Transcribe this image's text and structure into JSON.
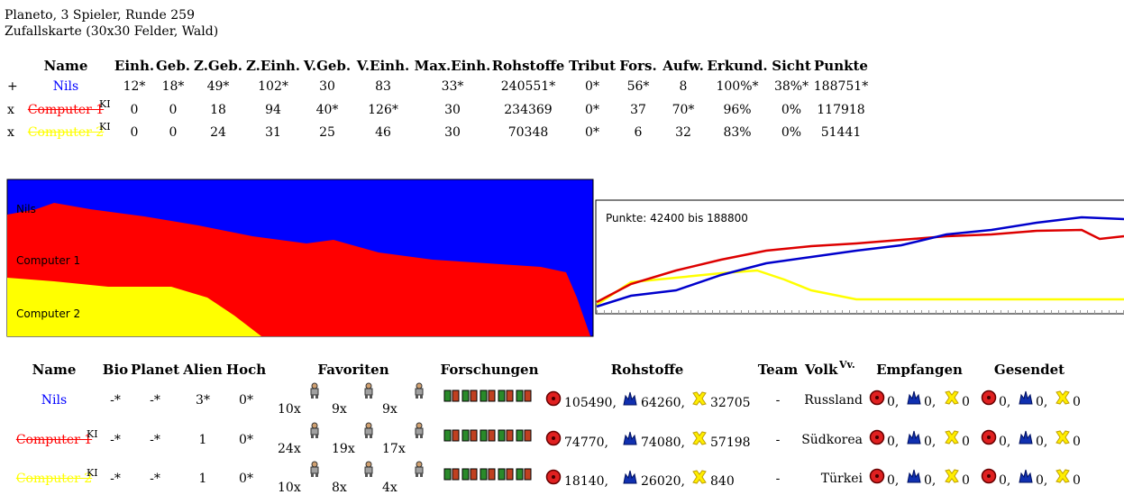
{
  "header": {
    "title": "Planeto, 3 Spieler, Runde 259",
    "subtitle": "Zufallskarte (30x30 Felder, Wald)"
  },
  "table1": {
    "columns": [
      "Name",
      "Einh.",
      "Geb.",
      "Z.Geb.",
      "Z.Einh.",
      "V.Geb.",
      "V.Einh.",
      "Max.Einh.",
      "Rohstoffe",
      "Tribut",
      "Fors.",
      "Aufw.",
      "Erkund.",
      "Sicht",
      "Punkte"
    ],
    "rows": [
      {
        "prefix": "+",
        "name": "Nils",
        "color": "#0000ff",
        "cells": [
          "12*",
          "18*",
          "49*",
          "102*",
          "30",
          "83",
          "33*",
          "240551*",
          "0*",
          "56*",
          "8",
          "100%*",
          "38%*",
          "188751*"
        ]
      },
      {
        "prefix": "x",
        "name": "Computer 1",
        "ki": "KI",
        "color": "#ff0000",
        "cells": [
          "0",
          "0",
          "18",
          "94",
          "40*",
          "126*",
          "30",
          "234369",
          "0*",
          "37",
          "70*",
          "96%",
          "0%",
          "117918"
        ]
      },
      {
        "prefix": "x",
        "name": "Computer 2",
        "ki": "KI",
        "color": "#ffff00",
        "cells": [
          "0",
          "0",
          "24",
          "31",
          "25",
          "46",
          "30",
          "70348",
          "0*",
          "6",
          "32",
          "83%",
          "0%",
          "51441"
        ]
      }
    ]
  },
  "graph": {
    "labels": [
      "Nils",
      "Computer 1",
      "Computer 2"
    ],
    "line_title": "Punkte: 42400 bis 188800"
  },
  "table2": {
    "columns": [
      "Name",
      "Bio",
      "Planet",
      "Alien",
      "Hoch",
      "Favoriten",
      "Forschungen",
      "Rohstoffe",
      "Team",
      "Volk",
      "Vv.",
      "Empfangen",
      "Gesendet"
    ],
    "rows": [
      {
        "name": "Nils",
        "color": "#0000ff",
        "stats": [
          "-*",
          "-*",
          "3*",
          "0*"
        ],
        "favorites": [
          "10x",
          "9x",
          "9x"
        ],
        "resources": [
          "105490,",
          "64260,",
          "32705"
        ],
        "team": "-",
        "volk": "Russland",
        "received": [
          "0,",
          "0,",
          "0"
        ],
        "sent": [
          "0,",
          "0,",
          "0"
        ]
      },
      {
        "name": "Computer 1",
        "ki": "KI",
        "color": "#ff0000",
        "stats": [
          "-*",
          "-*",
          "1",
          "0*"
        ],
        "favorites": [
          "24x",
          "19x",
          "17x"
        ],
        "resources": [
          "74770,",
          "74080,",
          "57198"
        ],
        "team": "-",
        "volk": "Südkorea",
        "received": [
          "0,",
          "0,",
          "0"
        ],
        "sent": [
          "0,",
          "0,",
          "0"
        ]
      },
      {
        "name": "Computer 2",
        "ki": "KI",
        "color": "#ffff00",
        "stats": [
          "-*",
          "-*",
          "1",
          "0*"
        ],
        "favorites": [
          "10x",
          "8x",
          "4x"
        ],
        "resources": [
          "18140,",
          "26020,",
          "840"
        ],
        "team": "-",
        "volk": "Türkei",
        "received": [
          "0,",
          "0,",
          "0"
        ],
        "sent": [
          "0,",
          "0,",
          "0"
        ]
      }
    ]
  }
}
